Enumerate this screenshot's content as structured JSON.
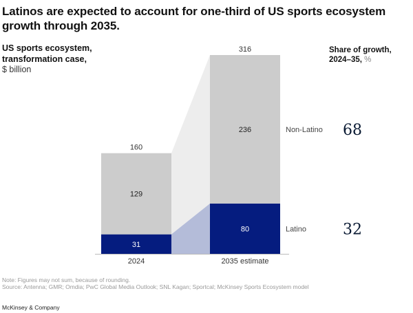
{
  "title": "Latinos are expected to account for one-third of US sports ecosystem growth through 2035.",
  "y_header": {
    "line1": "US sports ecosystem,",
    "line2": "transformation case,",
    "unit": "$ billion"
  },
  "share_header": {
    "line1": "Share of growth,",
    "line2": "2024–35,",
    "unit": " %"
  },
  "footnotes": {
    "note": "Note: Figures may not sum, because of rounding.",
    "source": "Source: Antenna; GMR; Omdia; PwC Global Media Outlook; SNL Kagan; Sportcal; McKinsey Sports Ecosystem model"
  },
  "brand": "McKinsey & Company",
  "colors": {
    "latino": "#051c7f",
    "non_latino": "#cccccc",
    "connector_top": "#ededed",
    "connector_bottom": "#b4bcd9"
  },
  "chart_data": {
    "type": "bar",
    "stacked": true,
    "title": "Latinos are expected to account for one-third of US sports ecosystem growth through 2035.",
    "ylabel": "US sports ecosystem, transformation case, $ billion",
    "xlabel": "",
    "categories": [
      "2024",
      "2035 estimate"
    ],
    "series": [
      {
        "name": "Latino",
        "values": [
          31,
          80
        ]
      },
      {
        "name": "Non-Latino",
        "values": [
          129,
          236
        ]
      }
    ],
    "totals": [
      160,
      316
    ],
    "ylim": [
      0,
      316
    ],
    "grid": false,
    "legend": "right",
    "share_of_growth": {
      "label": "Share of growth, 2024–35, %",
      "Non-Latino": 68,
      "Latino": 32
    }
  }
}
